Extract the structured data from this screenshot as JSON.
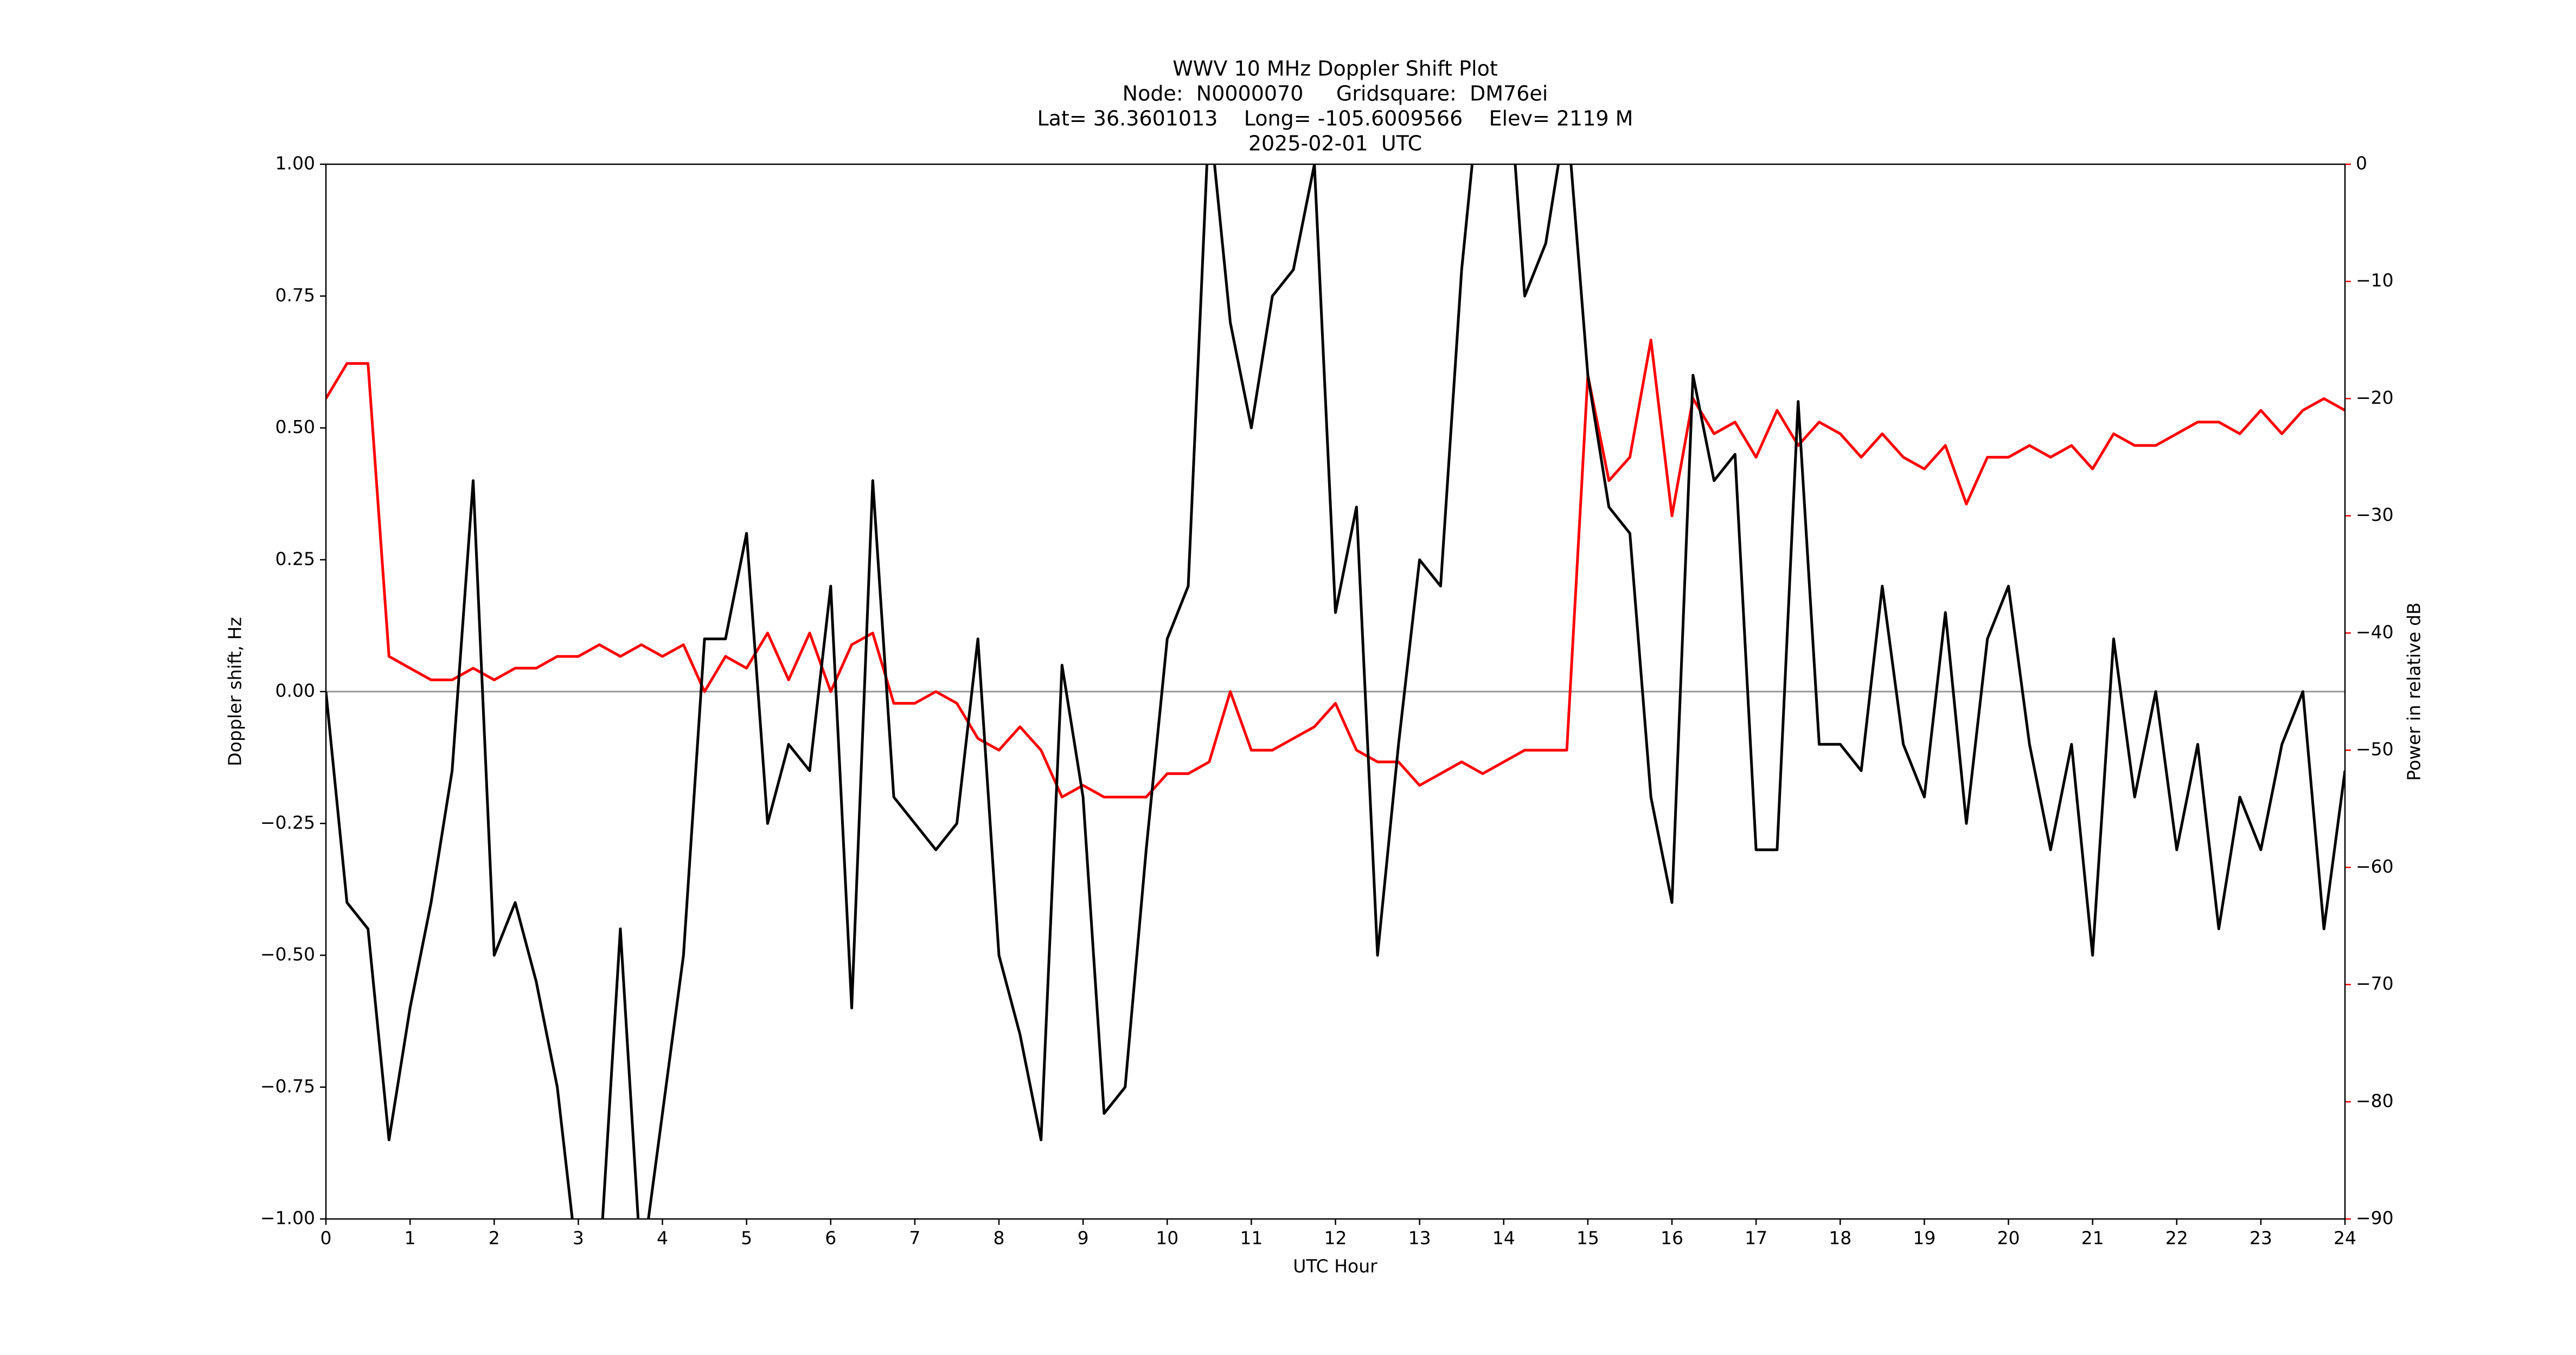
{
  "chart_data": {
    "type": "line",
    "title": [
      "WWV 10 MHz Doppler Shift Plot",
      "Node:  N0000070     Gridsquare:  DM76ei",
      "Lat= 36.3601013    Long= -105.6009566    Elev= 2119 M",
      "2025-02-01  UTC"
    ],
    "xlabel": "UTC Hour",
    "ylabel": "Doppler shift, Hz",
    "y2label": "Power in relative dB",
    "x": [
      0,
      0.25,
      0.5,
      0.75,
      1,
      1.25,
      1.5,
      1.75,
      2,
      2.25,
      2.5,
      2.75,
      3,
      3.25,
      3.5,
      3.75,
      4,
      4.25,
      4.5,
      4.75,
      5,
      5.25,
      5.5,
      5.75,
      6,
      6.25,
      6.5,
      6.75,
      7,
      7.25,
      7.5,
      7.75,
      8,
      8.25,
      8.5,
      8.75,
      9,
      9.25,
      9.5,
      9.75,
      10,
      10.25,
      10.5,
      10.75,
      11,
      11.25,
      11.5,
      11.75,
      12,
      12.25,
      12.5,
      12.75,
      13,
      13.25,
      13.5,
      13.75,
      14,
      14.25,
      14.5,
      14.75,
      15,
      15.25,
      15.5,
      15.75,
      16,
      16.25,
      16.5,
      16.75,
      17,
      17.25,
      17.5,
      17.75,
      18,
      18.25,
      18.5,
      18.75,
      19,
      19.25,
      19.5,
      19.75,
      20,
      20.25,
      20.5,
      20.75,
      21,
      21.25,
      21.5,
      21.75,
      22,
      22.25,
      22.5,
      22.75,
      23,
      23.25,
      23.5,
      23.75,
      24
    ],
    "series": [
      {
        "color": "#000000",
        "values": [
          0,
          -0.4,
          -0.45,
          -0.85,
          -0.6,
          -0.4,
          -0.15,
          0.4,
          -0.5,
          -0.4,
          -0.55,
          -0.75,
          -1.1,
          -1.1,
          -0.45,
          -1.1,
          -0.8,
          -0.5,
          0.1,
          0.1,
          0.3,
          -0.25,
          -0.1,
          -0.15,
          0.2,
          -0.6,
          0.4,
          -0.2,
          -0.25,
          -0.3,
          -0.25,
          0.1,
          -0.5,
          -0.65,
          -0.85,
          0.05,
          -0.2,
          -0.8,
          -0.75,
          -0.3,
          0.1,
          0.2,
          1.1,
          0.7,
          0.5,
          0.75,
          0.8,
          1.0,
          0.15,
          0.35,
          -0.5,
          -0.1,
          0.25,
          0.2,
          0.8,
          1.2,
          1.3,
          0.75,
          0.85,
          1.1,
          0.6,
          0.35,
          0.3,
          -0.2,
          -0.4,
          0.6,
          0.4,
          0.45,
          -0.3,
          -0.3,
          0.55,
          -0.1,
          -0.1,
          -0.15,
          0.2,
          -0.1,
          -0.2,
          0.15,
          -0.25,
          0.1,
          0.2,
          -0.1,
          -0.3,
          -0.1,
          -0.5,
          0.1,
          -0.2,
          0.0,
          -0.3,
          -0.1,
          -0.45,
          -0.2,
          -0.3,
          -0.1,
          0.0,
          -0.45,
          -0.15
        ]
      },
      {
        "color": "#ff0000",
        "axis": "y2",
        "values": [
          -20,
          -17,
          -17,
          -42,
          -43,
          -44,
          -44,
          -43,
          -44,
          -43,
          -43,
          -42,
          -42,
          -41,
          -42,
          -41,
          -42,
          -41,
          -45,
          -42,
          -43,
          -40,
          -44,
          -40,
          -45,
          -41,
          -40,
          -46,
          -46,
          -45,
          -46,
          -49,
          -50,
          -48,
          -50,
          -54,
          -53,
          -54,
          -54,
          -54,
          -52,
          -52,
          -51,
          -45,
          -50,
          -50,
          -49,
          -48,
          -46,
          -50,
          -51,
          -51,
          -53,
          -52,
          -51,
          -52,
          -51,
          -50,
          -50,
          -50,
          -18,
          -27,
          -25,
          -15,
          -30,
          -20,
          -23,
          -22,
          -25,
          -21,
          -24,
          -22,
          -23,
          -25,
          -23,
          -25,
          -26,
          -24,
          -29,
          -25,
          -25,
          -24,
          -25,
          -24,
          -26,
          -23,
          -24,
          -24,
          -23,
          -22,
          -22,
          -23,
          -21,
          -23,
          -21,
          -20,
          -21
        ]
      }
    ],
    "xlim": [
      0,
      24
    ],
    "xticks": [
      0,
      1,
      2,
      3,
      4,
      5,
      6,
      7,
      8,
      9,
      10,
      11,
      12,
      13,
      14,
      15,
      16,
      17,
      18,
      19,
      20,
      21,
      22,
      23,
      24
    ],
    "ylim": [
      -1,
      1
    ],
    "yticks": [
      {
        "value": -1,
        "label": "−1.00"
      },
      {
        "value": -0.75,
        "label": "−0.75"
      },
      {
        "value": -0.5,
        "label": "−0.50"
      },
      {
        "value": -0.25,
        "label": "−0.25"
      },
      {
        "value": 0,
        "label": "0.00"
      },
      {
        "value": 0.25,
        "label": "0.25"
      },
      {
        "value": 0.5,
        "label": "0.50"
      },
      {
        "value": 0.75,
        "label": "0.75"
      },
      {
        "value": 1,
        "label": "1.00"
      }
    ],
    "y2lim": [
      -90,
      0
    ],
    "y2ticks": [
      {
        "value": -90,
        "label": "−90"
      },
      {
        "value": -80,
        "label": "−80"
      },
      {
        "value": -70,
        "label": "−70"
      },
      {
        "value": -60,
        "label": "−60"
      },
      {
        "value": -50,
        "label": "−50"
      },
      {
        "value": -40,
        "label": "−40"
      },
      {
        "value": -30,
        "label": "−30"
      },
      {
        "value": -20,
        "label": "−20"
      },
      {
        "value": -10,
        "label": "−10"
      },
      0
    ]
  }
}
